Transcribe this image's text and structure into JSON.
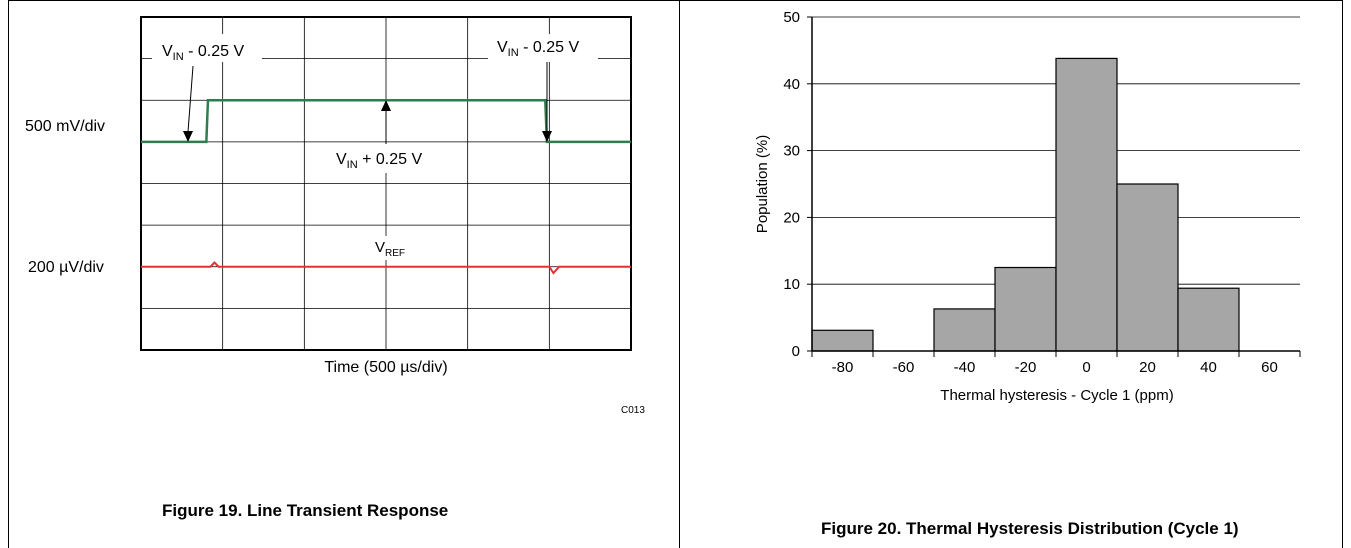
{
  "figure19": {
    "caption": "Figure 19. Line Transient Response",
    "code": "C013",
    "xlabel": "Time (500 µs/div)",
    "channel1_scale": "500 mV/div",
    "channel2_scale": "200 µV/div",
    "annotations": {
      "vin_minus_left": {
        "main": "V",
        "sub": "IN",
        "rest": " - 0.25 V"
      },
      "vin_minus_right": {
        "main": "V",
        "sub": "IN",
        "rest": " - 0.25 V"
      },
      "vin_plus": {
        "main": "V",
        "sub": "IN",
        "rest": " + 0.25 V"
      },
      "vref": {
        "main": "V",
        "sub": "REF",
        "rest": ""
      }
    },
    "colors": {
      "vin_trace": "#2e7d4f",
      "vref_trace": "#e53030",
      "grid": "#000000"
    }
  },
  "figure20": {
    "caption": "Figure 20. Thermal Hysteresis Distribution (Cycle 1)",
    "bar_color": "#a6a6a6"
  },
  "chart_data": [
    {
      "type": "line",
      "title": "Figure 19. Line Transient Response",
      "xlabel": "Time (500 µs/div)",
      "x_divisions": 6,
      "y_divisions": 8,
      "grid": true,
      "series": [
        {
          "name": "VIN",
          "scale": "500 mV/div",
          "x": [
            0,
            0.8,
            0.82,
            4.95,
            4.97,
            6
          ],
          "y": [
            -0.25,
            -0.25,
            0.25,
            0.25,
            -0.25,
            -0.25
          ]
        },
        {
          "name": "VREF",
          "scale": "200 µV/div",
          "x": [
            0,
            0.85,
            0.9,
            0.95,
            5.0,
            5.05,
            5.12,
            6
          ],
          "y": [
            0,
            0,
            0.1,
            0,
            0,
            -0.15,
            0,
            0
          ]
        }
      ]
    },
    {
      "type": "bar",
      "title": "Figure 20. Thermal Hysteresis Distribution (Cycle 1)",
      "xlabel": "Thermal hysteresis - Cycle 1 (ppm)",
      "ylabel": "Population (%)",
      "xticks": [
        -80,
        -60,
        -40,
        -20,
        0,
        20,
        40,
        60
      ],
      "yticks": [
        0,
        10,
        20,
        30,
        40,
        50
      ],
      "xlim": [
        -90,
        70
      ],
      "ylim": [
        0,
        50
      ],
      "grid": true,
      "bins": [
        {
          "center": -80,
          "value": 3.1
        },
        {
          "center": -60,
          "value": 0
        },
        {
          "center": -40,
          "value": 6.3
        },
        {
          "center": -20,
          "value": 12.5
        },
        {
          "center": 0,
          "value": 43.8
        },
        {
          "center": 20,
          "value": 25.0
        },
        {
          "center": 40,
          "value": 9.4
        },
        {
          "center": 60,
          "value": 0
        }
      ]
    }
  ]
}
